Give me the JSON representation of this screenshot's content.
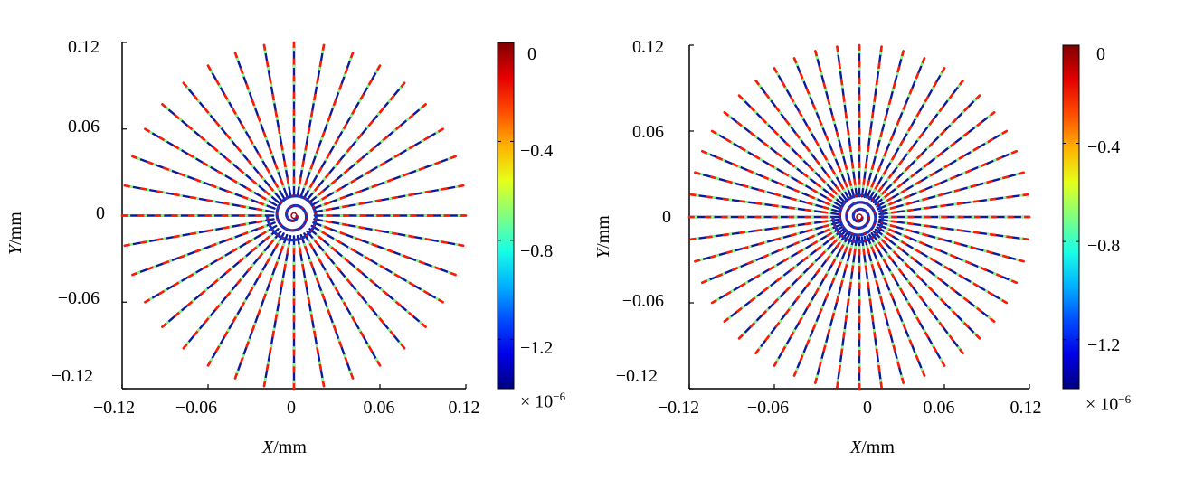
{
  "chart_data": [
    {
      "type": "scatter",
      "description_role": "left-panel",
      "xlabel": "X/mm",
      "xlabel_var": "X",
      "xlabel_unit": "/mm",
      "ylabel": "Y/mm",
      "ylabel_var": "Y",
      "ylabel_unit": "/mm",
      "xlim": [
        -0.12,
        0.12
      ],
      "ylim": [
        -0.12,
        0.12
      ],
      "xticks": [
        "-0.12",
        "-0.06",
        "0",
        "0.06",
        "0.12"
      ],
      "yticks": [
        "0.12",
        "0.06",
        "0",
        "-0.06",
        "-0.12"
      ],
      "xticklabels": [
        "−0.12",
        "−0.06",
        "0",
        "0.06",
        "0.12"
      ],
      "yticklabels": [
        "0.12",
        "0.06",
        "0",
        "−0.06",
        "−0.12"
      ],
      "colorbar": {
        "range": [
          -1.4,
          0
        ],
        "ticks": [
          "0",
          "−0.4",
          "−0.8",
          "−1.2"
        ],
        "tick_values": [
          0,
          -0.4,
          -0.8,
          -1.2
        ],
        "multiplier": "× 10",
        "multiplier_exp": "−6",
        "colormap": "jet"
      },
      "pattern": {
        "spokes": 36,
        "radius": 0.12,
        "spiral_turns": 2.5
      }
    },
    {
      "type": "scatter",
      "description_role": "right-panel",
      "xlabel": "X/mm",
      "xlabel_var": "X",
      "xlabel_unit": "/mm",
      "ylabel": "Y/mm",
      "ylabel_var": "Y",
      "ylabel_unit": "/mm",
      "xlim": [
        -0.12,
        0.12
      ],
      "ylim": [
        -0.12,
        0.12
      ],
      "xticklabels": [
        "−0.12",
        "−0.06",
        "0",
        "0.06",
        "0.12"
      ],
      "yticklabels": [
        "0.12",
        "0.06",
        "0",
        "−0.06",
        "−0.12"
      ],
      "colorbar": {
        "range": [
          -1.4,
          0
        ],
        "ticks": [
          "0",
          "−0.4",
          "−0.8",
          "−1.2"
        ],
        "tick_values": [
          0,
          -0.4,
          -0.8,
          -1.2
        ],
        "multiplier": "× 10",
        "multiplier_exp": "−6",
        "colormap": "jet"
      },
      "pattern": {
        "spokes": 48,
        "radius": 0.12,
        "spiral_turns": 3.5
      }
    }
  ]
}
